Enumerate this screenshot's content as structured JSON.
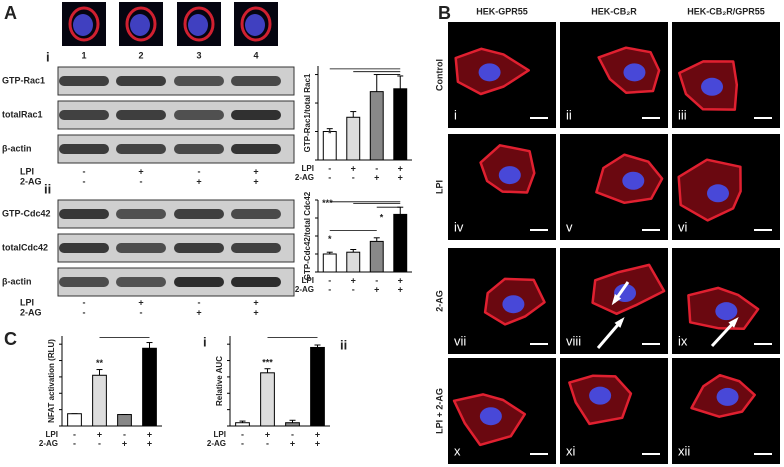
{
  "panel_a": {
    "letter": "A",
    "sub_i": "i",
    "sub_ii": "ii",
    "lanes": [
      "1",
      "2",
      "3",
      "4"
    ],
    "blots_i": [
      "GTP-Rac1",
      "totalRac1",
      "β-actin"
    ],
    "blots_ii": [
      "GTP-Cdc42",
      "totalCdc42",
      "β-actin"
    ],
    "treatments_i": [
      {
        "label": "LPI",
        "signs": [
          "-",
          "+",
          "-",
          "+"
        ]
      },
      {
        "label": "2-AG",
        "signs": [
          "-",
          "-",
          "+",
          "+"
        ]
      }
    ],
    "treatments_ii": [
      {
        "label": "LPI",
        "signs": [
          "-",
          "+",
          "-",
          "+"
        ]
      },
      {
        "label": "2-AG",
        "signs": [
          "-",
          "-",
          "+",
          "+"
        ]
      }
    ]
  },
  "panel_b": {
    "letter": "B",
    "columns": [
      "HEK-GPR55",
      "HEK-CB₂R",
      "HEK-CB₂R/GPR55"
    ],
    "rows": [
      "Control",
      "LPI",
      "2-AG",
      "LPI + 2-AG"
    ],
    "numerals": [
      "i",
      "ii",
      "iii",
      "iv",
      "v",
      "vi",
      "vii",
      "viii",
      "ix",
      "x",
      "xi",
      "xii"
    ]
  },
  "panel_c": {
    "letter": "C",
    "sub_i": "i",
    "sub_ii": "ii"
  },
  "chart_data": [
    {
      "type": "bar",
      "y_label": "GTP-Rac1/total Rac1",
      "values": [
        1,
        1.5,
        2.4,
        2.5
      ],
      "errors": [
        0.1,
        0.2,
        0.6,
        0.45
      ],
      "colors": [
        "#ffffff",
        "#dddddd",
        "#888888",
        "#000000"
      ],
      "ylim": [
        0,
        3.3
      ],
      "yticks": [
        0,
        1,
        2,
        3
      ],
      "annotations": [
        "*"
      ],
      "rows": [
        {
          "label": "LPI",
          "signs": [
            "-",
            "+",
            "-",
            "+"
          ]
        },
        {
          "label": "2-AG",
          "signs": [
            "-",
            "-",
            "+",
            "+"
          ]
        }
      ]
    },
    {
      "type": "bar",
      "y_label": "GTP-Cdc42/total Cdc42",
      "values": [
        1,
        1.1,
        1.7,
        3.2
      ],
      "errors": [
        0.1,
        0.15,
        0.2,
        0.4
      ],
      "colors": [
        "#ffffff",
        "#dddddd",
        "#888888",
        "#000000"
      ],
      "ylim": [
        0,
        4
      ],
      "yticks": [
        0,
        1,
        2,
        3,
        4
      ],
      "annotations": [
        "***",
        "*",
        "*"
      ],
      "rows": [
        {
          "label": "LPI",
          "signs": [
            "-",
            "+",
            "-",
            "+"
          ]
        },
        {
          "label": "2-AG",
          "signs": [
            "-",
            "-",
            "+",
            "+"
          ]
        }
      ]
    },
    {
      "type": "bar",
      "y_label": "NFAT activation (RLU)",
      "values": [
        15,
        62,
        14,
        95
      ],
      "errors": [
        0,
        7,
        0,
        7
      ],
      "colors": [
        "#ffffff",
        "#dddddd",
        "#888888",
        "#000000"
      ],
      "ylim": [
        0,
        110
      ],
      "yticks": [
        0,
        20,
        40,
        60,
        80,
        100
      ],
      "annotations": [
        "**"
      ],
      "rows": [
        {
          "label": "LPI",
          "signs": [
            "-",
            "+",
            "-",
            "+"
          ]
        },
        {
          "label": "2-AG",
          "signs": [
            "-",
            "-",
            "+",
            "+"
          ]
        }
      ]
    },
    {
      "type": "bar",
      "y_label": "Relative AUC",
      "values": [
        4,
        65,
        4,
        96
      ],
      "errors": [
        2,
        5,
        3,
        3
      ],
      "colors": [
        "#ffffff",
        "#dddddd",
        "#888888",
        "#000000"
      ],
      "ylim": [
        0,
        110
      ],
      "yticks": [
        0,
        20,
        40,
        60,
        80,
        100
      ],
      "annotations": [
        "***"
      ],
      "rows": [
        {
          "label": "LPI",
          "signs": [
            "-",
            "+",
            "-",
            "+"
          ]
        },
        {
          "label": "2-AG",
          "signs": [
            "-",
            "-",
            "+",
            "+"
          ]
        }
      ]
    }
  ]
}
